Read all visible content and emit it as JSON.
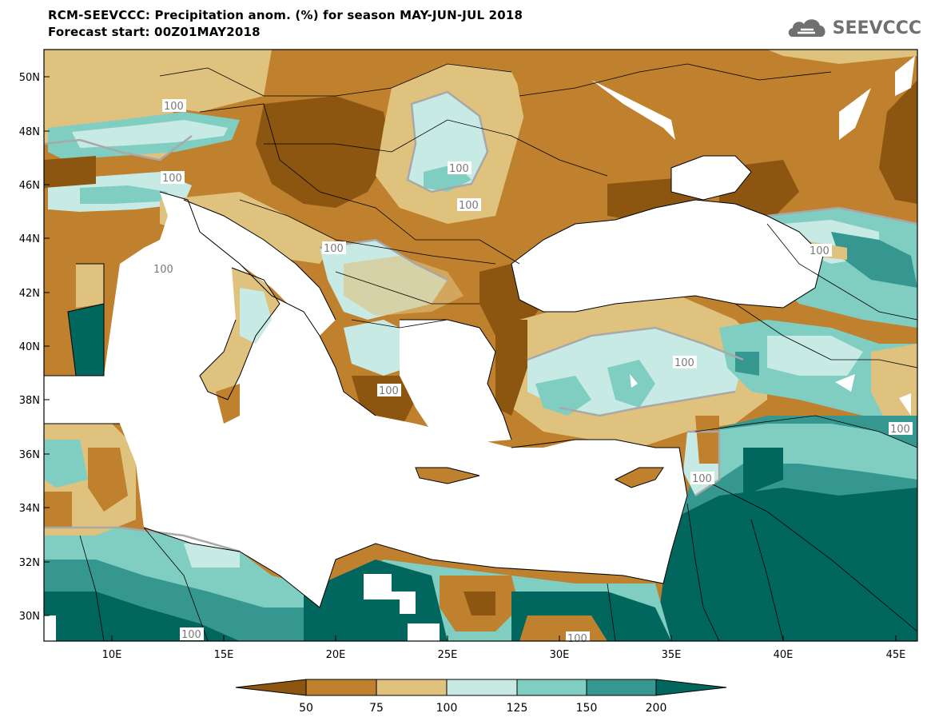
{
  "header": {
    "title_line1": "RCM-SEEVCCC: Precipitation anom. (%) for season MAY-JUN-JUL 2018",
    "title_line2": "Forecast start: 00Z01MAY2018"
  },
  "logo": {
    "text": "SEEVCCC",
    "icon": "cloud-icon"
  },
  "map": {
    "lat_ticks": [
      "50N",
      "48N",
      "46N",
      "44N",
      "42N",
      "40N",
      "38N",
      "36N",
      "34N",
      "32N",
      "30N"
    ],
    "lon_ticks": [
      "10E",
      "15E",
      "20E",
      "25E",
      "30E",
      "35E",
      "40E",
      "45E"
    ],
    "contour_labels": [
      "100",
      "100",
      "100",
      "100",
      "100",
      "100",
      "100",
      "100",
      "100",
      "100",
      "100",
      "100",
      "100"
    ]
  },
  "legend": {
    "labels": [
      "50",
      "75",
      "100",
      "125",
      "150",
      "200"
    ],
    "colors": [
      "#8c5510",
      "#bf812d",
      "#dfc27d",
      "#c7eae5",
      "#80cdc1",
      "#35978f",
      "#01665e"
    ]
  }
}
